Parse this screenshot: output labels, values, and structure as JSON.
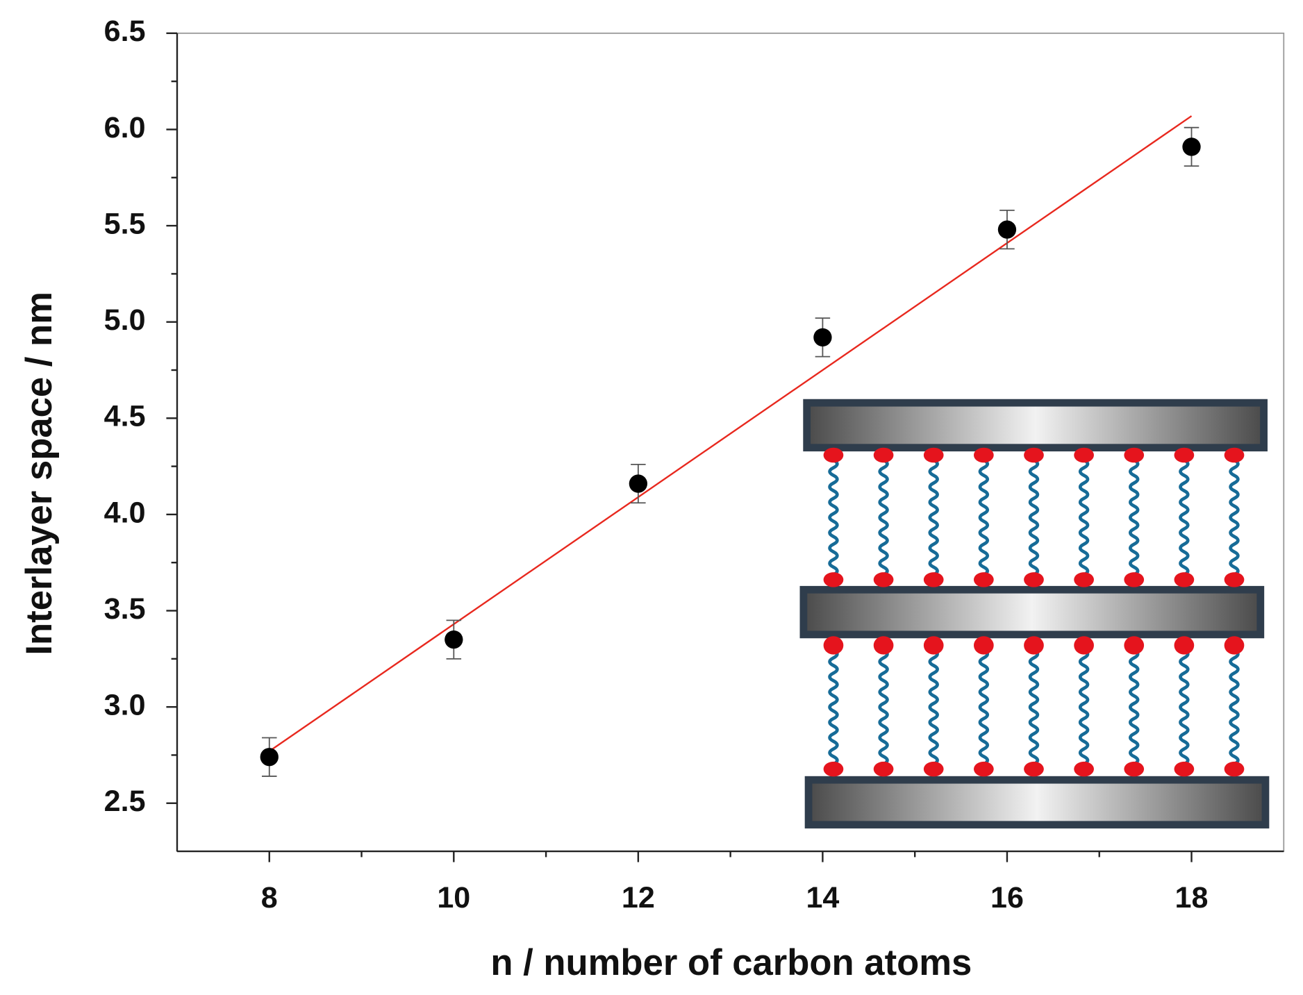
{
  "chart_data": {
    "type": "scatter",
    "x_label": "n / number of carbon atoms",
    "y_label": "Interlayer space / nm",
    "x": [
      8,
      10,
      12,
      14,
      16,
      18
    ],
    "values": [
      2.74,
      3.35,
      4.16,
      4.92,
      5.48,
      5.91
    ],
    "errors": [
      0.1,
      0.1,
      0.1,
      0.1,
      0.1,
      0.1
    ],
    "color": "#000000",
    "fit": {
      "x": [
        8,
        18
      ],
      "values": [
        2.77,
        6.07
      ],
      "color": "#e8281e"
    },
    "xlim": [
      7,
      19
    ],
    "xticks": [
      8,
      10,
      12,
      14,
      16,
      18
    ],
    "ylim": [
      2.25,
      6.5
    ],
    "yticks": [
      2.5,
      {
        "value": 3,
        "label": "3.0"
      },
      3.5,
      {
        "value": 4,
        "label": "4.0"
      },
      4.5,
      {
        "value": 5,
        "label": "5.0"
      },
      5.5,
      {
        "value": 6,
        "label": "6.0"
      },
      6.5
    ]
  }
}
